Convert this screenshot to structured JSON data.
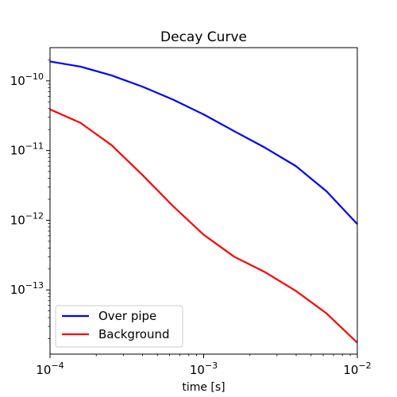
{
  "chart_data": {
    "type": "line",
    "title": "Decay Curve",
    "xlabel": "time [s]",
    "ylabel": "",
    "xscale": "log",
    "yscale": "log",
    "xlim": [
      0.0001,
      0.01
    ],
    "ylim": [
      1.2e-14,
      3e-10
    ],
    "grid": false,
    "legend_position": "lower-left",
    "x_ticks": [
      {
        "value": 0.0001,
        "base": "10",
        "exp": "−4"
      },
      {
        "value": 0.001,
        "base": "10",
        "exp": "−3"
      },
      {
        "value": 0.01,
        "base": "10",
        "exp": "−2"
      }
    ],
    "y_ticks": [
      {
        "value": 1e-10,
        "base": "10",
        "exp": "−10"
      },
      {
        "value": 1e-11,
        "base": "10",
        "exp": "−11"
      },
      {
        "value": 1e-12,
        "base": "10",
        "exp": "−12"
      },
      {
        "value": 1e-13,
        "base": "10",
        "exp": "−13"
      }
    ],
    "series": [
      {
        "name": "Over pipe",
        "color": "#0000ff",
        "x": [
          0.0001,
          0.000158,
          0.000251,
          0.000398,
          0.000631,
          0.001,
          0.00158,
          0.00251,
          0.00398,
          0.00631,
          0.01
        ],
        "y": [
          1.9e-10,
          1.6e-10,
          1.2e-10,
          8.3e-11,
          5.4e-11,
          3.3e-11,
          1.9e-11,
          1.1e-11,
          6e-12,
          2.6e-12,
          8.8e-13
        ]
      },
      {
        "name": "Background",
        "color": "#ff0000",
        "x": [
          0.0001,
          0.000158,
          0.000251,
          0.000398,
          0.000631,
          0.001,
          0.00158,
          0.00251,
          0.00398,
          0.00631,
          0.01
        ],
        "y": [
          3.9e-11,
          2.5e-11,
          1.2e-11,
          4.5e-12,
          1.6e-12,
          6.2e-13,
          3e-13,
          1.8e-13,
          9.7e-14,
          4.6e-14,
          1.75e-14
        ]
      }
    ]
  }
}
